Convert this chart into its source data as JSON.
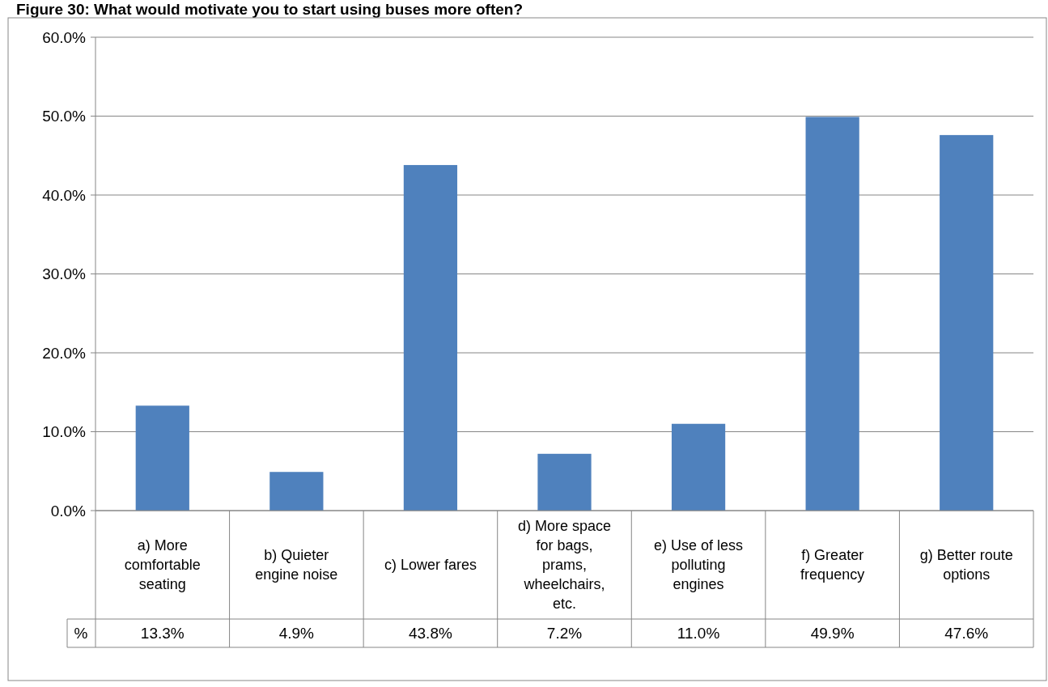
{
  "chart_data": {
    "type": "bar",
    "title": "Figure 30: What would motivate you to start using buses more often?",
    "categories": [
      "a) More comfortable seating",
      "b) Quieter engine noise",
      "c) Lower fares",
      "d) More space for bags, prams, wheelchairs, etc.",
      "e) Use of less polluting engines",
      "f) Greater frequency",
      "g) Better route options"
    ],
    "series": [
      {
        "name": "%",
        "color": "#4f81bd",
        "values": [
          13.3,
          4.9,
          43.8,
          7.2,
          11.0,
          49.9,
          47.6
        ]
      }
    ],
    "value_labels": [
      "13.3%",
      "4.9%",
      "43.8%",
      "7.2%",
      "11.0%",
      "49.9%",
      "47.6%"
    ],
    "ylim": [
      0,
      60
    ],
    "yticks": [
      {
        "value": 0,
        "label": "0.0%"
      },
      {
        "value": 10,
        "label": "10.0%"
      },
      {
        "value": 20,
        "label": "20.0%"
      },
      {
        "value": 30,
        "label": "30.0%"
      },
      {
        "value": 40,
        "label": "40.0%"
      },
      {
        "value": 50,
        "label": "50.0%"
      },
      {
        "value": 60,
        "label": "60.0%"
      }
    ],
    "grid": "y"
  }
}
